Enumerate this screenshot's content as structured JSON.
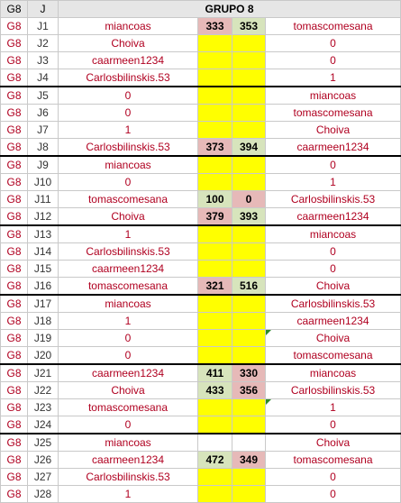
{
  "header": {
    "g": "G8",
    "j": "J",
    "title": "GRUPO 8"
  },
  "rows": [
    {
      "g": "G8",
      "j": "J1",
      "home": "miancoas",
      "hs": "333",
      "as": "353",
      "away": "tomascomesana"
    },
    {
      "g": "G8",
      "j": "J2",
      "home": "Choiva",
      "hs": "",
      "as": "",
      "away": "0"
    },
    {
      "g": "G8",
      "j": "J3",
      "home": "caarmeen1234",
      "hs": "",
      "as": "",
      "away": "0"
    },
    {
      "g": "G8",
      "j": "J4",
      "home": "Carlosbilinskis.53",
      "hs": "",
      "as": "",
      "away": "1"
    },
    {
      "g": "G8",
      "j": "J5",
      "home": "0",
      "hs": "",
      "as": "",
      "away": "miancoas"
    },
    {
      "g": "G8",
      "j": "J6",
      "home": "0",
      "hs": "",
      "as": "",
      "away": "tomascomesana"
    },
    {
      "g": "G8",
      "j": "J7",
      "home": "1",
      "hs": "",
      "as": "",
      "away": "Choiva"
    },
    {
      "g": "G8",
      "j": "J8",
      "home": "Carlosbilinskis.53",
      "hs": "373",
      "as": "394",
      "away": "caarmeen1234"
    },
    {
      "g": "G8",
      "j": "J9",
      "home": "miancoas",
      "hs": "",
      "as": "",
      "away": "0"
    },
    {
      "g": "G8",
      "j": "J10",
      "home": "0",
      "hs": "",
      "as": "",
      "away": "1"
    },
    {
      "g": "G8",
      "j": "J11",
      "home": "tomascomesana",
      "hs": "100",
      "as": "0",
      "away": "Carlosbilinskis.53"
    },
    {
      "g": "G8",
      "j": "J12",
      "home": "Choiva",
      "hs": "379",
      "as": "393",
      "away": "caarmeen1234"
    },
    {
      "g": "G8",
      "j": "J13",
      "home": "1",
      "hs": "",
      "as": "",
      "away": "miancoas"
    },
    {
      "g": "G8",
      "j": "J14",
      "home": "Carlosbilinskis.53",
      "hs": "",
      "as": "",
      "away": "0"
    },
    {
      "g": "G8",
      "j": "J15",
      "home": "caarmeen1234",
      "hs": "",
      "as": "",
      "away": "0"
    },
    {
      "g": "G8",
      "j": "J16",
      "home": "tomascomesana",
      "hs": "321",
      "as": "516",
      "away": "Choiva"
    },
    {
      "g": "G8",
      "j": "J17",
      "home": "miancoas",
      "hs": "",
      "as": "",
      "away": "Carlosbilinskis.53"
    },
    {
      "g": "G8",
      "j": "J18",
      "home": "1",
      "hs": "",
      "as": "",
      "away": "caarmeen1234"
    },
    {
      "g": "G8",
      "j": "J19",
      "home": "0",
      "hs": "",
      "as": "",
      "away": "Choiva"
    },
    {
      "g": "G8",
      "j": "J20",
      "home": "0",
      "hs": "",
      "as": "",
      "away": "tomascomesana"
    },
    {
      "g": "G8",
      "j": "J21",
      "home": "caarmeen1234",
      "hs": "411",
      "as": "330",
      "away": "miancoas"
    },
    {
      "g": "G8",
      "j": "J22",
      "home": "Choiva",
      "hs": "433",
      "as": "356",
      "away": "Carlosbilinskis.53"
    },
    {
      "g": "G8",
      "j": "J23",
      "home": "tomascomesana",
      "hs": "",
      "as": "",
      "away": "1"
    },
    {
      "g": "G8",
      "j": "J24",
      "home": "0",
      "hs": "",
      "as": "",
      "away": "0"
    },
    {
      "g": "G8",
      "j": "J25",
      "home": "miancoas",
      "hs": "",
      "as": "",
      "away": "Choiva"
    },
    {
      "g": "G8",
      "j": "J26",
      "home": "caarmeen1234",
      "hs": "472",
      "as": "349",
      "away": "tomascomesana"
    },
    {
      "g": "G8",
      "j": "J27",
      "home": "Carlosbilinskis.53",
      "hs": "",
      "as": "",
      "away": "0"
    },
    {
      "g": "G8",
      "j": "J28",
      "home": "1",
      "hs": "",
      "as": "",
      "away": "0"
    }
  ],
  "colors": {
    "score_pending": "#ffff00",
    "score_win": "#d7e4bc",
    "score_lose": "#e6b9b8",
    "text_red": "#b00020",
    "group_border": "#000000"
  }
}
